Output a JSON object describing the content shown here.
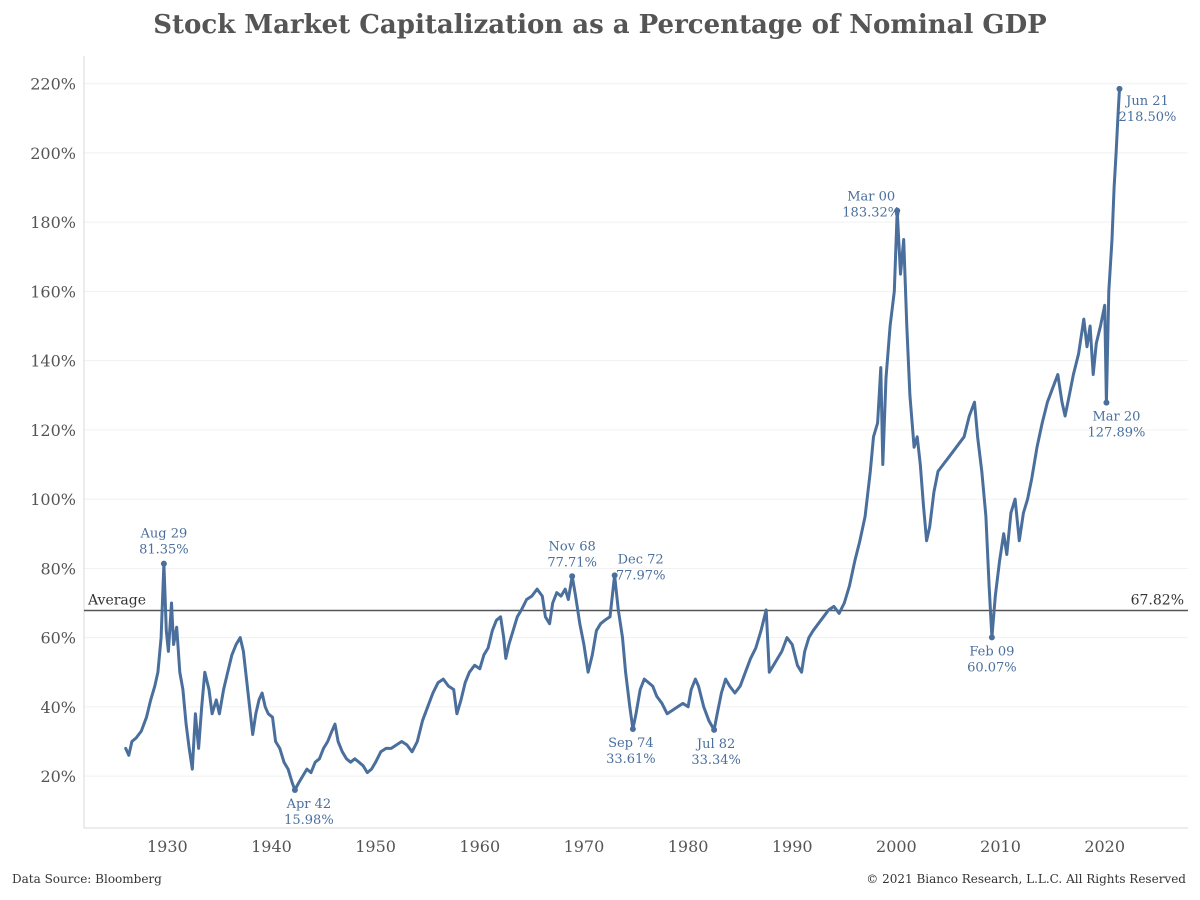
{
  "chart_data": {
    "type": "line",
    "title": "Stock Market Capitalization as a Percentage of Nominal GDP",
    "xlabel": "",
    "ylabel": "",
    "xlim": [
      1922,
      2028
    ],
    "ylim": [
      5,
      228
    ],
    "x_ticks": [
      "1930",
      "1940",
      "1950",
      "1960",
      "1970",
      "1980",
      "1990",
      "2000",
      "2010",
      "2020"
    ],
    "y_ticks": [
      "20%",
      "40%",
      "60%",
      "80%",
      "100%",
      "120%",
      "140%",
      "160%",
      "180%",
      "200%",
      "220%"
    ],
    "grid": "horizontal",
    "series": [
      {
        "color": "#4a6f9c",
        "points": [
          [
            1926.0,
            28
          ],
          [
            1926.3,
            26
          ],
          [
            1926.6,
            30
          ],
          [
            1927.0,
            31
          ],
          [
            1927.5,
            33
          ],
          [
            1928.0,
            37
          ],
          [
            1928.4,
            42
          ],
          [
            1928.8,
            46
          ],
          [
            1929.1,
            50
          ],
          [
            1929.4,
            60
          ],
          [
            1929.67,
            81.35
          ],
          [
            1929.9,
            62
          ],
          [
            1930.1,
            56
          ],
          [
            1930.4,
            70
          ],
          [
            1930.6,
            58
          ],
          [
            1930.9,
            63
          ],
          [
            1931.2,
            50
          ],
          [
            1931.5,
            45
          ],
          [
            1931.8,
            35
          ],
          [
            1932.1,
            28
          ],
          [
            1932.4,
            22
          ],
          [
            1932.7,
            38
          ],
          [
            1933.0,
            28
          ],
          [
            1933.3,
            40
          ],
          [
            1933.6,
            50
          ],
          [
            1934.0,
            45
          ],
          [
            1934.3,
            38
          ],
          [
            1934.7,
            42
          ],
          [
            1935.0,
            38
          ],
          [
            1935.4,
            45
          ],
          [
            1935.8,
            50
          ],
          [
            1936.2,
            55
          ],
          [
            1936.6,
            58
          ],
          [
            1937.0,
            60
          ],
          [
            1937.3,
            56
          ],
          [
            1937.6,
            48
          ],
          [
            1937.9,
            40
          ],
          [
            1938.2,
            32
          ],
          [
            1938.5,
            38
          ],
          [
            1938.8,
            42
          ],
          [
            1939.1,
            44
          ],
          [
            1939.4,
            40
          ],
          [
            1939.7,
            38
          ],
          [
            1940.1,
            37
          ],
          [
            1940.4,
            30
          ],
          [
            1940.8,
            28
          ],
          [
            1941.2,
            24
          ],
          [
            1941.6,
            22
          ],
          [
            1942.0,
            18
          ],
          [
            1942.25,
            15.98
          ],
          [
            1942.6,
            18
          ],
          [
            1943.0,
            20
          ],
          [
            1943.4,
            22
          ],
          [
            1943.8,
            21
          ],
          [
            1944.2,
            24
          ],
          [
            1944.6,
            25
          ],
          [
            1945.0,
            28
          ],
          [
            1945.4,
            30
          ],
          [
            1945.8,
            33
          ],
          [
            1946.1,
            35
          ],
          [
            1946.4,
            30
          ],
          [
            1946.8,
            27
          ],
          [
            1947.2,
            25
          ],
          [
            1947.6,
            24
          ],
          [
            1948.0,
            25
          ],
          [
            1948.4,
            24
          ],
          [
            1948.8,
            23
          ],
          [
            1949.2,
            21
          ],
          [
            1949.6,
            22
          ],
          [
            1950.0,
            24
          ],
          [
            1950.5,
            27
          ],
          [
            1951.0,
            28
          ],
          [
            1951.5,
            28
          ],
          [
            1952.0,
            29
          ],
          [
            1952.5,
            30
          ],
          [
            1953.0,
            29
          ],
          [
            1953.5,
            27
          ],
          [
            1954.0,
            30
          ],
          [
            1954.5,
            36
          ],
          [
            1955.0,
            40
          ],
          [
            1955.5,
            44
          ],
          [
            1956.0,
            47
          ],
          [
            1956.5,
            48
          ],
          [
            1957.0,
            46
          ],
          [
            1957.5,
            45
          ],
          [
            1957.8,
            38
          ],
          [
            1958.2,
            42
          ],
          [
            1958.6,
            47
          ],
          [
            1959.0,
            50
          ],
          [
            1959.5,
            52
          ],
          [
            1960.0,
            51
          ],
          [
            1960.4,
            55
          ],
          [
            1960.8,
            57
          ],
          [
            1961.2,
            62
          ],
          [
            1961.6,
            65
          ],
          [
            1962.0,
            66
          ],
          [
            1962.3,
            60
          ],
          [
            1962.5,
            54
          ],
          [
            1962.8,
            58
          ],
          [
            1963.2,
            62
          ],
          [
            1963.6,
            66
          ],
          [
            1964.0,
            68
          ],
          [
            1964.5,
            71
          ],
          [
            1965.0,
            72
          ],
          [
            1965.5,
            74
          ],
          [
            1966.0,
            72
          ],
          [
            1966.3,
            66
          ],
          [
            1966.7,
            64
          ],
          [
            1967.0,
            70
          ],
          [
            1967.4,
            73
          ],
          [
            1967.8,
            72
          ],
          [
            1968.2,
            74
          ],
          [
            1968.5,
            71
          ],
          [
            1968.87,
            77.71
          ],
          [
            1969.2,
            72
          ],
          [
            1969.6,
            64
          ],
          [
            1970.0,
            58
          ],
          [
            1970.4,
            50
          ],
          [
            1970.8,
            55
          ],
          [
            1971.2,
            62
          ],
          [
            1971.6,
            64
          ],
          [
            1972.0,
            65
          ],
          [
            1972.5,
            66
          ],
          [
            1972.95,
            77.97
          ],
          [
            1973.3,
            68
          ],
          [
            1973.7,
            60
          ],
          [
            1974.0,
            50
          ],
          [
            1974.4,
            40
          ],
          [
            1974.7,
            33.61
          ],
          [
            1975.0,
            38
          ],
          [
            1975.4,
            45
          ],
          [
            1975.8,
            48
          ],
          [
            1976.2,
            47
          ],
          [
            1976.6,
            46
          ],
          [
            1977.0,
            43
          ],
          [
            1977.5,
            41
          ],
          [
            1978.0,
            38
          ],
          [
            1978.5,
            39
          ],
          [
            1979.0,
            40
          ],
          [
            1979.5,
            41
          ],
          [
            1980.0,
            40
          ],
          [
            1980.3,
            45
          ],
          [
            1980.7,
            48
          ],
          [
            1981.0,
            46
          ],
          [
            1981.5,
            40
          ],
          [
            1982.0,
            36
          ],
          [
            1982.5,
            33.34
          ],
          [
            1982.8,
            38
          ],
          [
            1983.2,
            44
          ],
          [
            1983.6,
            48
          ],
          [
            1984.0,
            46
          ],
          [
            1984.5,
            44
          ],
          [
            1985.0,
            46
          ],
          [
            1985.5,
            50
          ],
          [
            1986.0,
            54
          ],
          [
            1986.5,
            57
          ],
          [
            1987.0,
            62
          ],
          [
            1987.5,
            68
          ],
          [
            1987.8,
            50
          ],
          [
            1988.2,
            52
          ],
          [
            1988.6,
            54
          ],
          [
            1989.0,
            56
          ],
          [
            1989.5,
            60
          ],
          [
            1990.0,
            58
          ],
          [
            1990.5,
            52
          ],
          [
            1990.9,
            50
          ],
          [
            1991.2,
            56
          ],
          [
            1991.6,
            60
          ],
          [
            1992.0,
            62
          ],
          [
            1992.5,
            64
          ],
          [
            1993.0,
            66
          ],
          [
            1993.5,
            68
          ],
          [
            1994.0,
            69
          ],
          [
            1994.5,
            67
          ],
          [
            1995.0,
            70
          ],
          [
            1995.5,
            75
          ],
          [
            1996.0,
            82
          ],
          [
            1996.5,
            88
          ],
          [
            1997.0,
            95
          ],
          [
            1997.5,
            108
          ],
          [
            1997.8,
            118
          ],
          [
            1998.2,
            122
          ],
          [
            1998.5,
            138
          ],
          [
            1998.7,
            110
          ],
          [
            1999.0,
            135
          ],
          [
            1999.4,
            150
          ],
          [
            1999.8,
            160
          ],
          [
            2000.08,
            183.32
          ],
          [
            2000.4,
            165
          ],
          [
            2000.7,
            175
          ],
          [
            2001.0,
            150
          ],
          [
            2001.3,
            130
          ],
          [
            2001.7,
            115
          ],
          [
            2002.0,
            118
          ],
          [
            2002.3,
            110
          ],
          [
            2002.6,
            98
          ],
          [
            2002.9,
            88
          ],
          [
            2003.2,
            92
          ],
          [
            2003.6,
            102
          ],
          [
            2004.0,
            108
          ],
          [
            2004.5,
            110
          ],
          [
            2005.0,
            112
          ],
          [
            2005.5,
            114
          ],
          [
            2006.0,
            116
          ],
          [
            2006.5,
            118
          ],
          [
            2007.0,
            124
          ],
          [
            2007.5,
            128
          ],
          [
            2007.8,
            118
          ],
          [
            2008.2,
            108
          ],
          [
            2008.6,
            95
          ],
          [
            2008.9,
            75
          ],
          [
            2009.17,
            60.07
          ],
          [
            2009.5,
            72
          ],
          [
            2009.9,
            82
          ],
          [
            2010.3,
            90
          ],
          [
            2010.6,
            84
          ],
          [
            2011.0,
            96
          ],
          [
            2011.4,
            100
          ],
          [
            2011.8,
            88
          ],
          [
            2012.2,
            96
          ],
          [
            2012.6,
            100
          ],
          [
            2013.0,
            106
          ],
          [
            2013.5,
            115
          ],
          [
            2014.0,
            122
          ],
          [
            2014.5,
            128
          ],
          [
            2015.0,
            132
          ],
          [
            2015.5,
            136
          ],
          [
            2015.9,
            128
          ],
          [
            2016.2,
            124
          ],
          [
            2016.6,
            130
          ],
          [
            2017.0,
            136
          ],
          [
            2017.5,
            142
          ],
          [
            2018.0,
            152
          ],
          [
            2018.3,
            144
          ],
          [
            2018.6,
            150
          ],
          [
            2018.9,
            136
          ],
          [
            2019.2,
            145
          ],
          [
            2019.6,
            150
          ],
          [
            2020.0,
            156
          ],
          [
            2020.17,
            127.89
          ],
          [
            2020.4,
            160
          ],
          [
            2020.7,
            175
          ],
          [
            2020.9,
            190
          ],
          [
            2021.1,
            200
          ],
          [
            2021.3,
            212
          ],
          [
            2021.42,
            218.5
          ]
        ]
      }
    ],
    "reference_line": {
      "label": "Average",
      "value": 67.82,
      "value_label": "67.82%"
    },
    "annotations": [
      {
        "x": 1929.67,
        "y": 81.35,
        "date": "Aug 29",
        "value": "81.35%",
        "position": "above"
      },
      {
        "x": 1942.25,
        "y": 15.98,
        "date": "Apr 42",
        "value": "15.98%",
        "position": "below"
      },
      {
        "x": 1968.87,
        "y": 77.71,
        "date": "Nov 68",
        "value": "77.71%",
        "position": "above"
      },
      {
        "x": 1972.95,
        "y": 77.97,
        "date": "Dec 72",
        "value": "77.97%",
        "position": "above-right"
      },
      {
        "x": 1974.7,
        "y": 33.61,
        "date": "Sep 74",
        "value": "33.61%",
        "position": "below"
      },
      {
        "x": 1982.5,
        "y": 33.34,
        "date": "Jul 82",
        "value": "33.34%",
        "position": "below"
      },
      {
        "x": 2000.08,
        "y": 183.32,
        "date": "Mar 00",
        "value": "183.32%",
        "position": "left"
      },
      {
        "x": 2009.17,
        "y": 60.07,
        "date": "Feb 09",
        "value": "60.07%",
        "position": "below"
      },
      {
        "x": 2020.17,
        "y": 127.89,
        "date": "Mar 20",
        "value": "127.89%",
        "position": "below"
      },
      {
        "x": 2021.42,
        "y": 218.5,
        "date": "Jun 21",
        "value": "218.50%",
        "position": "right"
      }
    ]
  },
  "footer": {
    "source": "Data Source: Bloomberg",
    "copyright": "© 2021 Bianco Research, L.L.C. All Rights Reserved"
  }
}
